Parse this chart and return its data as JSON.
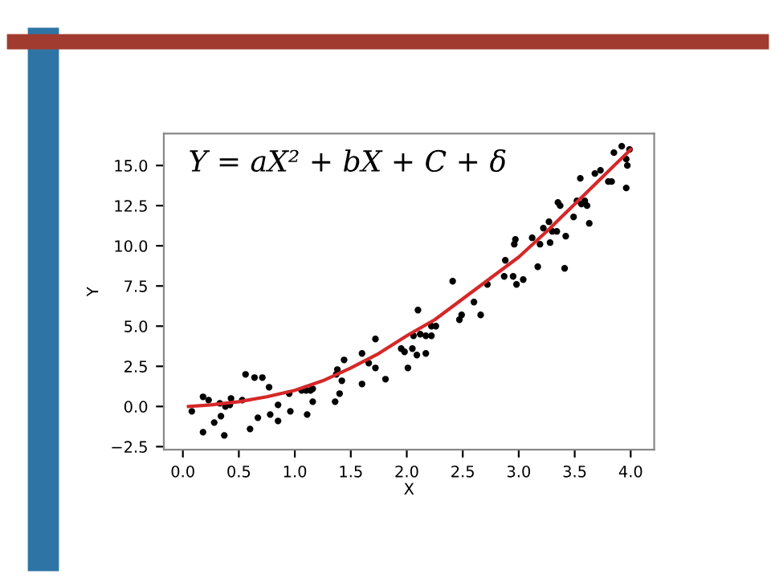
{
  "chart_data": {
    "type": "scatter",
    "xlabel": "X",
    "ylabel": "Y",
    "annotations": [
      "Y = aX² + bX + C + δ"
    ],
    "xlim": [
      -0.17,
      4.21
    ],
    "ylim": [
      -2.69,
      16.99
    ],
    "xticks": [
      {
        "value": 0,
        "label": "0.0"
      },
      {
        "value": 0.5,
        "label": "0.5"
      },
      {
        "value": 1,
        "label": "1.0"
      },
      {
        "value": 1.5,
        "label": "1.5"
      },
      {
        "value": 2,
        "label": "2.0"
      },
      {
        "value": 2.5,
        "label": "2.5"
      },
      {
        "value": 3,
        "label": "3.0"
      },
      {
        "value": 3.5,
        "label": "3.5"
      },
      {
        "value": 4,
        "label": "4.0"
      }
    ],
    "yticks": [
      {
        "value": -2.5,
        "label": "−2.5"
      },
      {
        "value": 0,
        "label": "0.0"
      },
      {
        "value": 2.5,
        "label": "2.5"
      },
      {
        "value": 5,
        "label": "5.0"
      },
      {
        "value": 7.5,
        "label": "7.5"
      },
      {
        "value": 10,
        "label": "10.0"
      },
      {
        "value": 12.5,
        "label": "12.5"
      },
      {
        "value": 15,
        "label": "15.0"
      }
    ],
    "grid": false,
    "legend": false,
    "series": [
      {
        "color": "#000000",
        "marker": "circle",
        "x": [
          0.08,
          0.18,
          0.18,
          0.23,
          0.28,
          0.33,
          0.34,
          0.37,
          0.38,
          0.42,
          0.43,
          0.53,
          0.56,
          0.6,
          0.64,
          0.67,
          0.71,
          0.77,
          0.78,
          0.85,
          0.85,
          0.95,
          0.96,
          1.06,
          1.1,
          1.11,
          1.14,
          1.16,
          1.16,
          1.36,
          1.37,
          1.38,
          1.4,
          1.42,
          1.44,
          1.6,
          1.6,
          1.66,
          1.72,
          1.72,
          1.81,
          1.95,
          1.98,
          2.01,
          2.05,
          2.06,
          2.09,
          2.1,
          2.12,
          2.17,
          2.17,
          2.22,
          2.22,
          2.26,
          2.41,
          2.47,
          2.49,
          2.6,
          2.66,
          2.72,
          2.87,
          2.88,
          2.95,
          2.96,
          2.97,
          2.98,
          3.04,
          3.12,
          3.17,
          3.19,
          3.22,
          3.27,
          3.28,
          3.3,
          3.34,
          3.35,
          3.37,
          3.41,
          3.42,
          3.49,
          3.52,
          3.55,
          3.56,
          3.59,
          3.61,
          3.63,
          3.68,
          3.73,
          3.8,
          3.83,
          3.85,
          3.92,
          3.96,
          3.96,
          3.97,
          3.99
        ],
        "values": [
          -0.3,
          0.6,
          -1.6,
          0.4,
          -1.0,
          0.2,
          -0.6,
          -1.8,
          0.0,
          0.1,
          0.5,
          0.4,
          2.0,
          -1.4,
          1.8,
          -0.7,
          1.8,
          1.2,
          -0.5,
          0.1,
          -0.9,
          0.8,
          -0.3,
          1.0,
          1.0,
          -0.5,
          1.0,
          1.1,
          0.3,
          0.3,
          2.0,
          2.3,
          0.8,
          1.6,
          2.9,
          3.3,
          1.4,
          2.7,
          4.2,
          2.4,
          1.7,
          3.6,
          3.4,
          2.4,
          3.6,
          4.4,
          3.2,
          6.0,
          4.5,
          3.3,
          4.4,
          4.4,
          5.0,
          5.0,
          7.8,
          5.4,
          5.7,
          6.5,
          5.7,
          7.6,
          8.1,
          9.1,
          8.1,
          10.1,
          10.4,
          7.6,
          7.9,
          10.5,
          8.7,
          10.1,
          11.1,
          11.5,
          10.2,
          10.9,
          10.9,
          12.7,
          12.5,
          8.6,
          10.6,
          11.8,
          12.8,
          14.2,
          12.6,
          12.8,
          12.5,
          11.4,
          14.5,
          14.7,
          14.0,
          14.0,
          15.8,
          16.2,
          13.6,
          15.4,
          15.0,
          16.0
        ]
      },
      {
        "type": "line",
        "color": "#d62728",
        "marker": "none",
        "line_style": "solid",
        "x": [
          0.05,
          0.25,
          0.5,
          0.75,
          1.0,
          1.25,
          1.5,
          1.75,
          2.0,
          2.25,
          2.5,
          2.75,
          3.0,
          3.25,
          3.5,
          3.75,
          4.0
        ],
        "values": [
          0.0,
          0.1,
          0.3,
          0.6,
          1.0,
          1.6,
          2.4,
          3.3,
          4.4,
          5.4,
          6.7,
          8.0,
          9.3,
          10.9,
          12.6,
          14.3,
          16.0
        ]
      }
    ]
  }
}
